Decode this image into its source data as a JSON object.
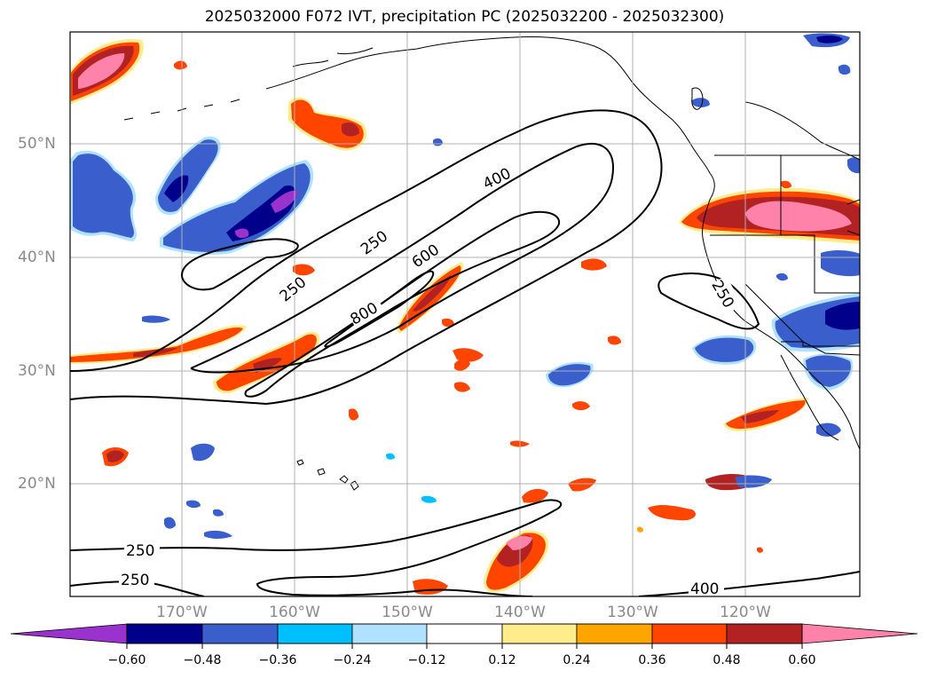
{
  "title": "2025032000 F072 IVT, precipitation PC (2025032200 - 2025032300)",
  "latitude_labels": [
    "50°N",
    "40°N",
    "30°N",
    "20°N"
  ],
  "longitude_labels": [
    "170°W",
    "160°W",
    "150°W",
    "140°W",
    "130°W",
    "120°W"
  ],
  "ivt_contour_labels": [
    "250",
    "400",
    "600",
    "800",
    "250",
    "250",
    "250",
    "400",
    "250"
  ],
  "colorbar": {
    "ticks": [
      "−0.60",
      "−0.48",
      "−0.36",
      "−0.24",
      "−0.12",
      "0.12",
      "0.24",
      "0.36",
      "0.48",
      "0.60"
    ],
    "colors": [
      "#9a32cd",
      "#00008b",
      "#3a5fcd",
      "#00bfff",
      "#b0e2ff",
      "#ffffff",
      "#ffec8b",
      "#ffa500",
      "#ff4500",
      "#b22222",
      "#ff82ab"
    ]
  },
  "colors": {
    "grid": "#b0b0b0",
    "coastline": "#000000",
    "contour": "#000000"
  }
}
